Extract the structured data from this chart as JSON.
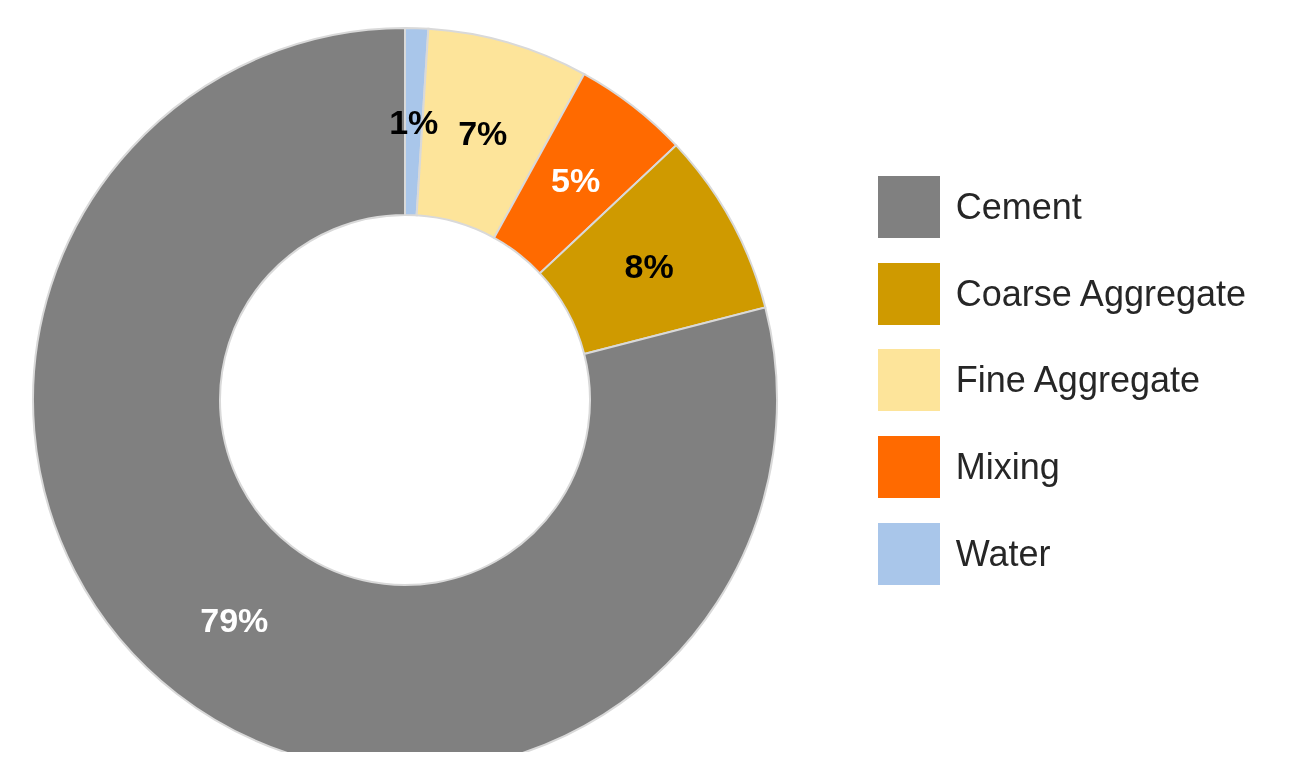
{
  "chart_data": {
    "type": "donut",
    "categories": [
      "Water",
      "Fine Aggregate",
      "Mixing",
      "Coarse Aggregate",
      "Cement"
    ],
    "values": [
      1,
      7,
      5,
      8,
      79
    ],
    "colors": [
      "#a9c6ea",
      "#fde49a",
      "#ff6a00",
      "#cf9a00",
      "#808080"
    ],
    "value_labels": [
      "1%",
      "7%",
      "5%",
      "8%",
      "79%"
    ],
    "legend": "right"
  }
}
